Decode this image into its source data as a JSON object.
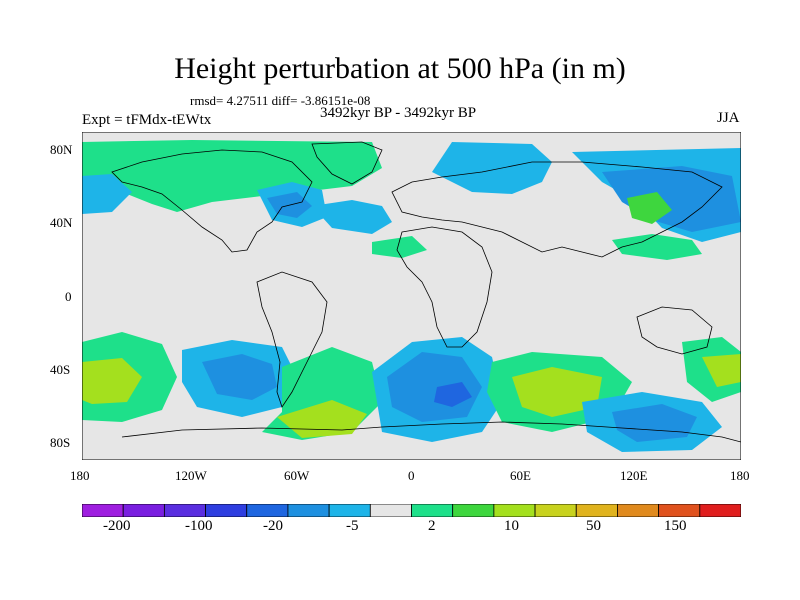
{
  "title": "Height perturbation at 500 hPa (in m)",
  "stats": "rmsd= 4.27511 diff= -3.86151e-08",
  "experiment": "Expt = tFMdx-tEWtx",
  "period": "3492kyr BP - 3492kyr BP",
  "season": "JJA",
  "lat_labels": [
    "80N",
    "40N",
    "0",
    "40S",
    "80S"
  ],
  "lon_labels": [
    "180",
    "120W",
    "60W",
    "0",
    "60E",
    "120E",
    "180"
  ],
  "colorbar": {
    "colors": [
      "#9f1fe0",
      "#7a1fe0",
      "#5a2ee0",
      "#2e3ee0",
      "#1f66e0",
      "#1e90e0",
      "#1eb4e8",
      "#e6e6e6",
      "#1ee08a",
      "#3ed63e",
      "#a4e01e",
      "#c8d21e",
      "#e0b31e",
      "#e08a1e",
      "#e0521e",
      "#e01e1e"
    ],
    "labels": [
      "-200",
      "-100",
      "-20",
      "-5",
      "2",
      "10",
      "50",
      "150"
    ]
  },
  "colors": {
    "background": "#e6e6e6",
    "coast": "#000000"
  }
}
